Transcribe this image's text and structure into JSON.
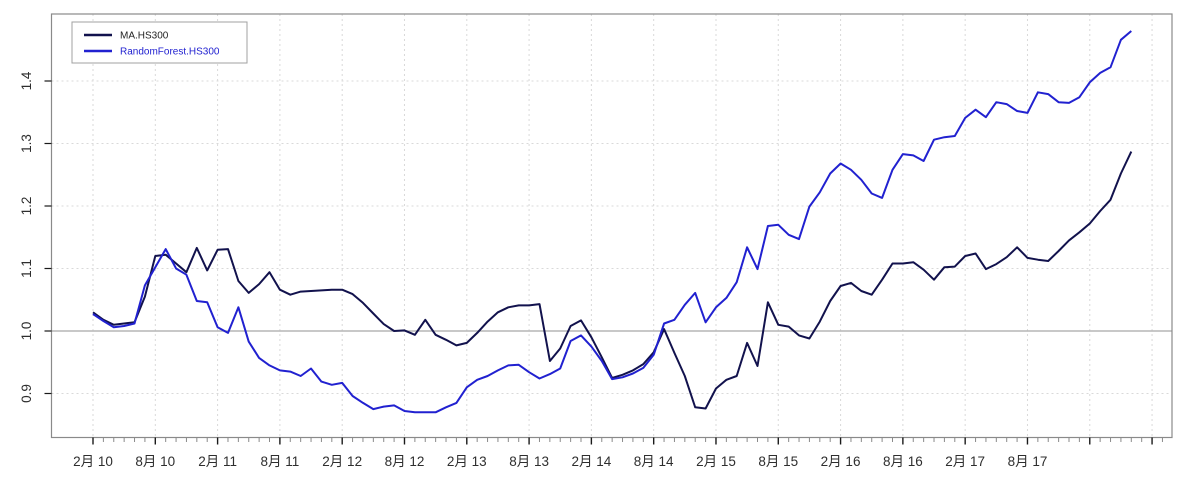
{
  "figure": {
    "background": "#ffffff",
    "box_border_color": "#8a8a8a",
    "grid_dash_color": "#d9d9d9",
    "reference_line_color": "#b5b5b5",
    "major_tick_color": "#1a1a1a",
    "minor_tick_color": "#8a8a8a",
    "tick_label_color": "#2e2e2e"
  },
  "legend": {
    "position": "top-left",
    "border_color": "#a0a0a0",
    "items": [
      {
        "label": "MA.HS300",
        "line_color": "#12124d",
        "text_color": "#1f1f1f"
      },
      {
        "label": "RandomForest.HS300",
        "line_color": "#2121d0",
        "text_color": "#2121d0"
      }
    ]
  },
  "chart_data": {
    "type": "line",
    "title": "",
    "xlabel": "",
    "ylabel": "",
    "grid": true,
    "legend_position": "top-left",
    "x_start": "2010-02",
    "x_freq": "monthly",
    "x_tick_labels": [
      "2月 10",
      "8月 10",
      "2月 11",
      "8月 11",
      "2月 12",
      "8月 12",
      "2月 13",
      "8月 13",
      "2月 14",
      "8月 14",
      "2月 15",
      "8月 15",
      "2月 16",
      "8月 16",
      "2月 17",
      "8月 17"
    ],
    "x_unlabeled_major_ticks": 2,
    "y_ticks": [
      0.9,
      1.0,
      1.1,
      1.2,
      1.3,
      1.4
    ],
    "ylim": [
      0.83,
      1.51
    ],
    "reference_line_y": 1.0,
    "series": [
      {
        "name": "MA.HS300",
        "color": "#12124d",
        "values": [
          1.03,
          1.018,
          1.01,
          1.012,
          1.014,
          1.055,
          1.12,
          1.122,
          1.108,
          1.094,
          1.133,
          1.097,
          1.13,
          1.131,
          1.08,
          1.061,
          1.075,
          1.094,
          1.066,
          1.058,
          1.063,
          1.064,
          1.065,
          1.066,
          1.066,
          1.059,
          1.045,
          1.028,
          1.011,
          1.0,
          1.001,
          0.994,
          1.018,
          0.994,
          0.986,
          0.977,
          0.981,
          0.997,
          1.015,
          1.03,
          1.038,
          1.041,
          1.041,
          1.043,
          0.952,
          0.972,
          1.008,
          1.017,
          0.99,
          0.958,
          0.925,
          0.93,
          0.937,
          0.947,
          0.966,
          1.003,
          0.965,
          0.928,
          0.878,
          0.876,
          0.908,
          0.922,
          0.928,
          0.981,
          0.944,
          1.046,
          1.01,
          1.007,
          0.993,
          0.988,
          1.015,
          1.048,
          1.072,
          1.077,
          1.064,
          1.058,
          1.082,
          1.108,
          1.108,
          1.11,
          1.098,
          1.082,
          1.102,
          1.103,
          1.12,
          1.124,
          1.099,
          1.107,
          1.118,
          1.134,
          1.117,
          1.114,
          1.112,
          1.128,
          1.145,
          1.158,
          1.172,
          1.192,
          1.21,
          1.252,
          1.287
        ]
      },
      {
        "name": "RandomForest.HS300",
        "color": "#2121d0",
        "values": [
          1.027,
          1.016,
          1.006,
          1.008,
          1.012,
          1.073,
          1.102,
          1.131,
          1.1,
          1.09,
          1.048,
          1.046,
          1.006,
          0.997,
          1.038,
          0.983,
          0.957,
          0.945,
          0.937,
          0.935,
          0.928,
          0.94,
          0.919,
          0.914,
          0.917,
          0.896,
          0.885,
          0.875,
          0.879,
          0.881,
          0.872,
          0.87,
          0.87,
          0.87,
          0.878,
          0.885,
          0.91,
          0.922,
          0.928,
          0.937,
          0.945,
          0.946,
          0.934,
          0.924,
          0.931,
          0.94,
          0.984,
          0.993,
          0.975,
          0.952,
          0.923,
          0.926,
          0.932,
          0.941,
          0.962,
          1.012,
          1.018,
          1.042,
          1.061,
          1.014,
          1.038,
          1.053,
          1.078,
          1.134,
          1.099,
          1.168,
          1.17,
          1.154,
          1.147,
          1.199,
          1.222,
          1.252,
          1.268,
          1.258,
          1.242,
          1.22,
          1.213,
          1.258,
          1.283,
          1.281,
          1.272,
          1.306,
          1.31,
          1.312,
          1.341,
          1.354,
          1.342,
          1.366,
          1.363,
          1.352,
          1.349,
          1.382,
          1.379,
          1.366,
          1.365,
          1.374,
          1.398,
          1.413,
          1.422,
          1.466,
          1.48
        ]
      }
    ]
  }
}
